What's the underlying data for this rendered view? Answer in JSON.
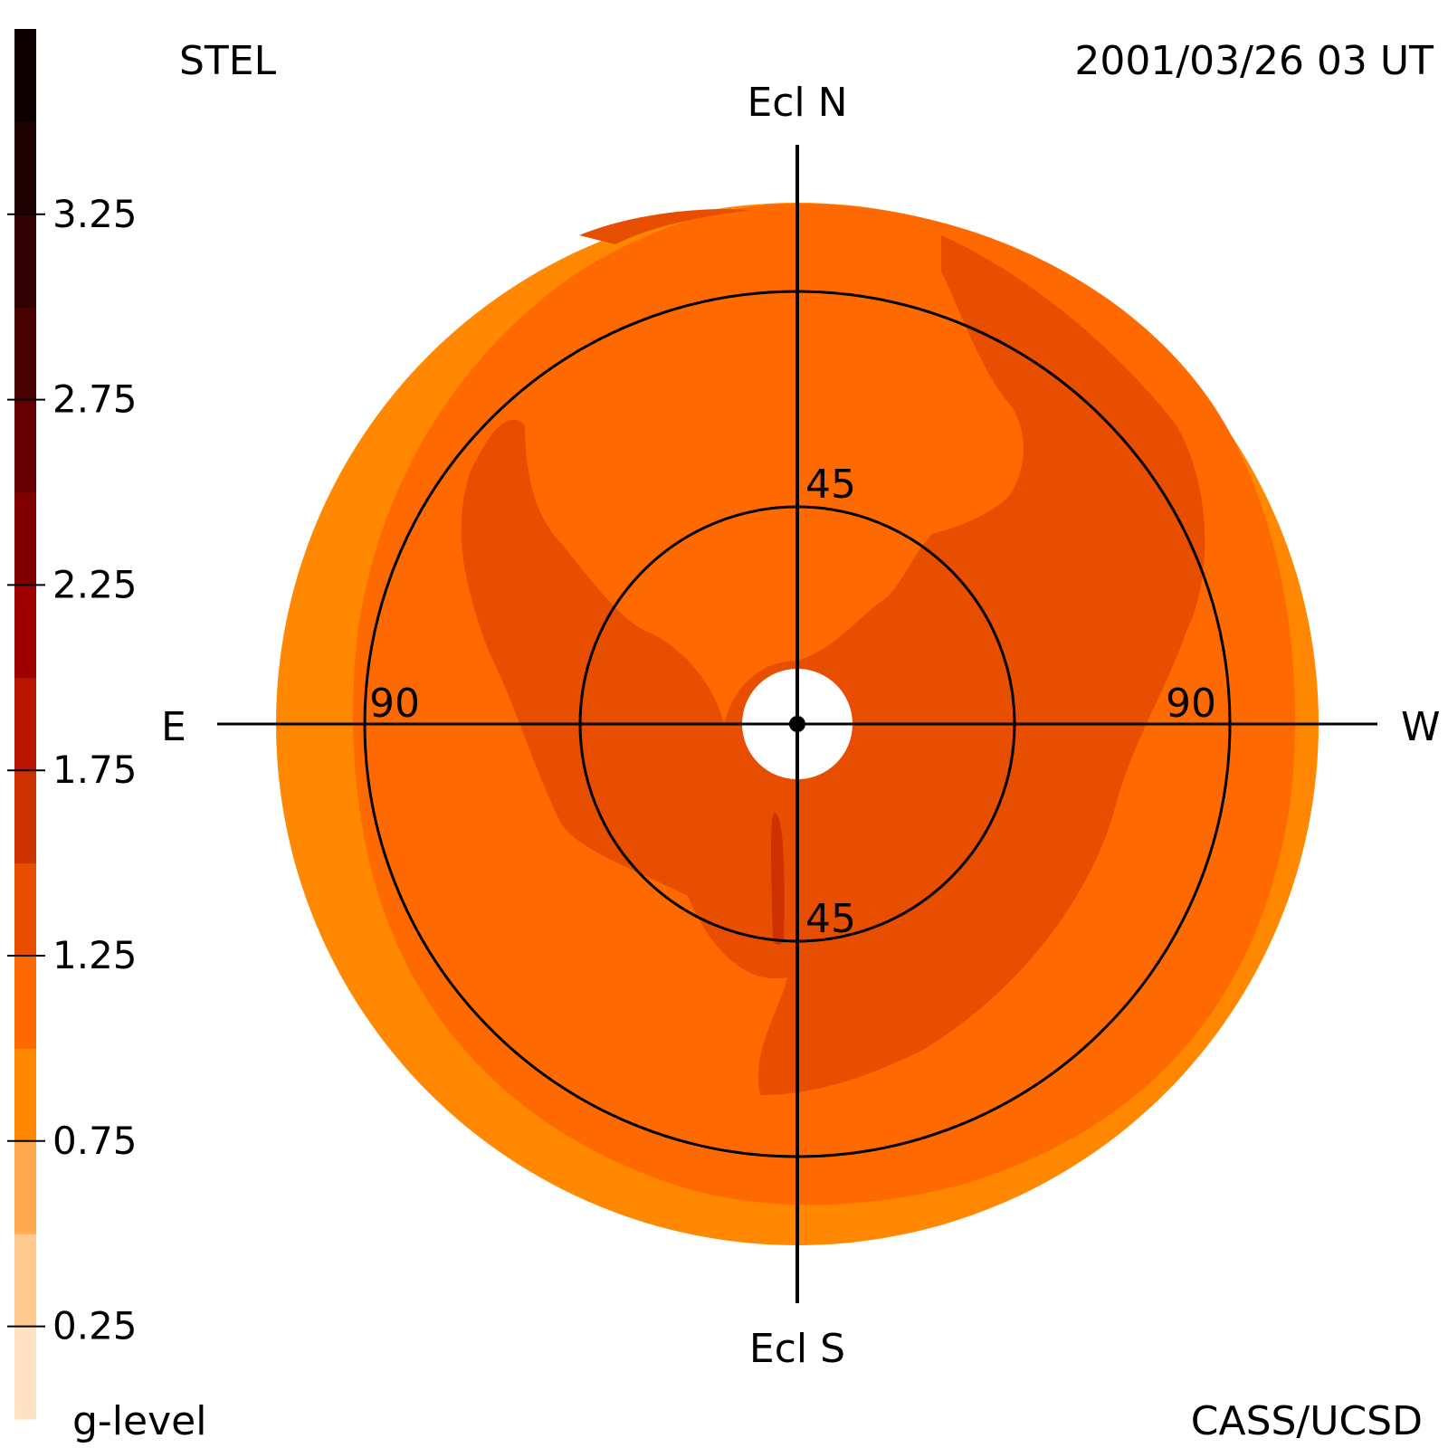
{
  "header": {
    "left_label": "STEL",
    "timestamp": "2001/03/26 03 UT"
  },
  "footer": {
    "colorbar_label": "g-level",
    "credit": "CASS/UCSD"
  },
  "chart_data": {
    "type": "heatmap",
    "projection": "polar fisheye sky map",
    "directions": {
      "north": "Ecl N",
      "south": "Ecl S",
      "east": "E",
      "west": "W"
    },
    "ring_labels": {
      "inner_top": "45",
      "inner_bottom": "45",
      "outer_left": "90",
      "outer_right": "90"
    },
    "rings_elongation_deg": [
      45,
      90
    ],
    "colorbar": {
      "tick_labels": [
        "3.25",
        "2.75",
        "2.25",
        "1.75",
        "1.25",
        "0.75",
        "0.25"
      ],
      "range": [
        0.0,
        3.75
      ],
      "levels": [
        {
          "value": 0.125,
          "color": "#ffe2c4"
        },
        {
          "value": 0.375,
          "color": "#ffc88e"
        },
        {
          "value": 0.625,
          "color": "#ffaa50"
        },
        {
          "value": 0.875,
          "color": "#ff8800"
        },
        {
          "value": 1.125,
          "color": "#ff6a00"
        },
        {
          "value": 1.375,
          "color": "#e84e00"
        },
        {
          "value": 1.625,
          "color": "#cc3300"
        },
        {
          "value": 1.875,
          "color": "#b81600"
        },
        {
          "value": 2.125,
          "color": "#9c0000"
        },
        {
          "value": 2.375,
          "color": "#800000"
        },
        {
          "value": 2.625,
          "color": "#640000"
        },
        {
          "value": 2.875,
          "color": "#480202"
        },
        {
          "value": 3.125,
          "color": "#300202"
        },
        {
          "value": 3.375,
          "color": "#1e0202"
        },
        {
          "value": 3.625,
          "color": "#0e0000"
        }
      ]
    },
    "regions_g_level": {
      "outer_edge": 0.875,
      "background_disk": 1.125,
      "enhanced_structure": 1.375,
      "central_streak": 1.625
    }
  }
}
